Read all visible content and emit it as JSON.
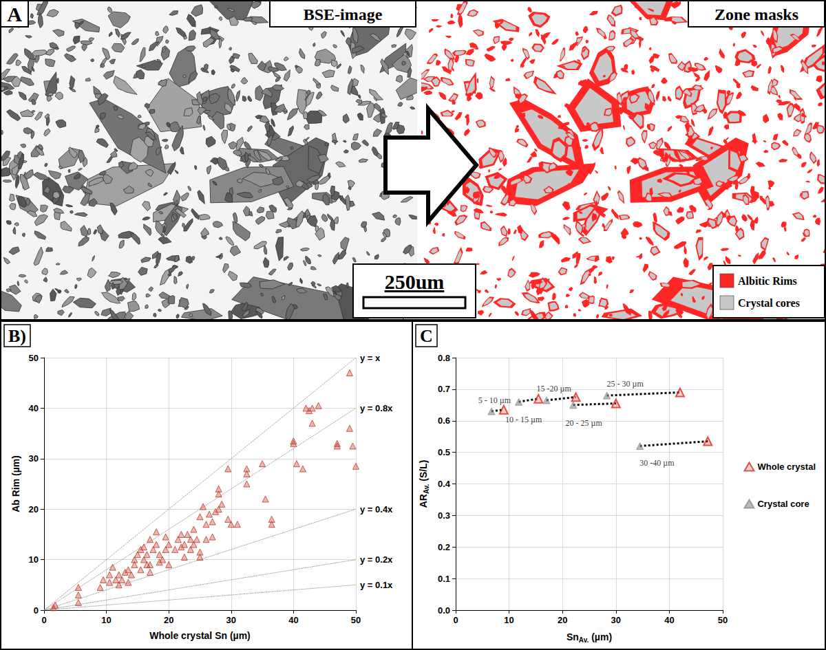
{
  "panel_a": {
    "letter": "A",
    "left_title": "BSE-image",
    "right_title": "Zone masks",
    "scale_bar": "250um",
    "legend_items": [
      {
        "label": "Albitic Rims",
        "color": "#ff2626"
      },
      {
        "label": "Crystal cores",
        "color": "#c8c8c8"
      }
    ]
  },
  "chart_data": [
    {
      "type": "scatter",
      "title": "B)",
      "x_label": "Whole crystal Sn (µm)",
      "y_label": "Ab Rim (µm)",
      "xlim": [
        0,
        50
      ],
      "xticks": [
        0,
        10,
        20,
        30,
        40,
        50
      ],
      "ylim": [
        0,
        50
      ],
      "yticks": [
        0,
        10,
        20,
        30,
        40,
        50
      ],
      "grid": true,
      "color": "#c0392b",
      "marker": "triangle",
      "x": [
        1.5,
        1.8,
        5.5,
        5.5,
        5.5,
        9,
        9.5,
        10.5,
        10.5,
        11,
        11.5,
        12,
        12,
        12.5,
        13,
        13.5,
        13.5,
        14,
        14.5,
        14.5,
        15,
        15.5,
        15.5,
        16,
        16,
        16.5,
        16.5,
        17,
        17,
        17,
        17.5,
        18,
        18,
        18.5,
        18.5,
        19,
        19.5,
        19.5,
        20,
        20,
        21,
        21.5,
        22,
        22,
        22.5,
        22.5,
        23,
        23.5,
        23.5,
        24,
        24,
        24.5,
        25,
        25,
        25,
        25.5,
        26,
        26,
        26.5,
        27,
        27,
        27.5,
        28,
        28,
        28,
        28.5,
        29.5,
        29.5,
        30,
        31,
        32.5,
        32.5,
        32.5,
        35,
        35.5,
        36.5,
        36.5,
        40,
        40,
        40.5,
        41.5,
        42,
        42.5,
        43,
        43,
        44,
        47,
        47,
        49,
        49,
        49.5,
        50
      ],
      "values": [
        0.5,
        1,
        4.5,
        3,
        1.5,
        4.5,
        6,
        5.5,
        7,
        8.5,
        6,
        5,
        7,
        6,
        7.5,
        8,
        5.5,
        7,
        9,
        10,
        11,
        12,
        8,
        12.5,
        10,
        11,
        9,
        9,
        14,
        7.5,
        12,
        15.5,
        13,
        11,
        9.5,
        10,
        14.5,
        12,
        13,
        9,
        12,
        14,
        15,
        12.5,
        13,
        10.5,
        15,
        12,
        14,
        16,
        13,
        14,
        18.5,
        11.5,
        10.5,
        20.5,
        14,
        17,
        19,
        17.5,
        14.5,
        19.5,
        24,
        20,
        23,
        21,
        28,
        18,
        17,
        17,
        27,
        25,
        28,
        29,
        22,
        17,
        18,
        33.5,
        33,
        29,
        28,
        40,
        39.5,
        40,
        37,
        40.5,
        33,
        32.5,
        47,
        36,
        32.5,
        28.5
      ],
      "reference_lines": [
        {
          "label": "y = x",
          "slope": 1,
          "line_style": "dotted"
        },
        {
          "label": "y = 0.8x",
          "slope": 0.8,
          "line_style": "dotted"
        },
        {
          "label": "y = 0.4x",
          "slope": 0.4,
          "line_style": "dotted"
        },
        {
          "label": "y = 0.2x",
          "slope": 0.2,
          "line_style": "dotted"
        },
        {
          "label": "y = 0.1x",
          "slope": 0.1,
          "line_style": "dotted"
        }
      ]
    },
    {
      "type": "scatter",
      "title": "C",
      "x_label": {
        "text": "Sn",
        "subscript": "Av.",
        "suffix": " (µm)"
      },
      "y_label": {
        "text": "AR",
        "subscript": "Av.",
        "suffix": " (S/L)"
      },
      "xlim": [
        0,
        50
      ],
      "xticks": [
        0,
        10,
        20,
        30,
        40,
        50
      ],
      "ylim": [
        0,
        0.8
      ],
      "yticks": [
        {
          "value": 0,
          "label": "0.0"
        },
        0.1,
        0.2,
        0.3,
        0.4,
        0.5,
        0.6,
        0.7,
        0.8
      ],
      "grid": true,
      "legend": "right",
      "line_style": "dotted",
      "series": [
        {
          "name": "Whole crystal",
          "color": "#e8231c",
          "marker": "triangle",
          "x": [
            9,
            15.5,
            22.5,
            30,
            42,
            47.2
          ],
          "values": [
            0.635,
            0.67,
            0.675,
            0.655,
            0.69,
            0.535
          ]
        },
        {
          "name": "Crystal core",
          "color": "#8c8c8c",
          "marker": "triangle",
          "x": [
            6.7,
            11.8,
            17,
            22,
            28.3,
            34.5
          ],
          "values": [
            0.63,
            0.66,
            0.665,
            0.65,
            0.68,
            0.52
          ]
        }
      ],
      "group_labels": [
        "5 - 10 µm",
        "10 - 15 µm",
        "15 -20 µm",
        "20 - 25 µm",
        "25 - 30 µm",
        "30 -40 µm"
      ]
    }
  ]
}
